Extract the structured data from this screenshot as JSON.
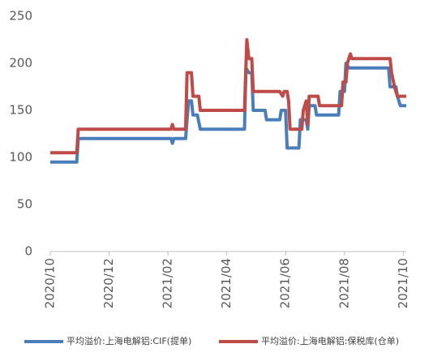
{
  "chart_data": {
    "type": "line",
    "xlim": [
      0,
      12.1
    ],
    "xticks": [
      {
        "value": 0,
        "label": "2020/10"
      },
      {
        "value": 2,
        "label": "2020/12"
      },
      {
        "value": 4,
        "label": "2021/02"
      },
      {
        "value": 6,
        "label": "2021/04"
      },
      {
        "value": 8,
        "label": "2021/06"
      },
      {
        "value": 10,
        "label": "2021/08"
      },
      {
        "value": 12,
        "label": "2021/10"
      }
    ],
    "ylim": [
      0,
      250
    ],
    "yticks": [
      0,
      50,
      100,
      150,
      200,
      250
    ],
    "grid": false,
    "legend": "bottom",
    "series": [
      {
        "name": "平均溢价:上海电解铝:CIF(提单)",
        "color": "#4a7ebb",
        "x": [
          0,
          0.9,
          0.95,
          4.1,
          4.15,
          4.2,
          4.6,
          4.7,
          4.8,
          4.85,
          5.0,
          5.1,
          6.6,
          6.65,
          6.75,
          6.85,
          6.9,
          7.3,
          7.35,
          7.8,
          7.85,
          8.0,
          8.05,
          8.45,
          8.5,
          8.7,
          8.75,
          8.8,
          9.0,
          9.05,
          9.8,
          9.85,
          10.0,
          10.05,
          10.15,
          11.5,
          11.55,
          11.75,
          11.8,
          11.9,
          12.1
        ],
        "values": [
          95,
          95,
          120,
          120,
          115,
          120,
          120,
          160,
          160,
          145,
          145,
          130,
          130,
          195,
          190,
          190,
          150,
          150,
          140,
          140,
          150,
          150,
          110,
          110,
          140,
          140,
          130,
          155,
          155,
          145,
          145,
          170,
          170,
          200,
          195,
          195,
          175,
          175,
          165,
          155,
          155
        ]
      },
      {
        "name": "平均溢价:上海电解铝:保税库(仓单)",
        "color": "#be4b48",
        "x": [
          0,
          0.9,
          0.95,
          4.1,
          4.15,
          4.2,
          4.6,
          4.65,
          4.8,
          4.85,
          5.05,
          5.1,
          6.6,
          6.68,
          6.75,
          6.85,
          6.9,
          7.8,
          7.9,
          7.95,
          8.05,
          8.1,
          8.15,
          8.55,
          8.6,
          8.7,
          8.75,
          8.8,
          9.1,
          9.15,
          9.9,
          9.95,
          10.05,
          10.1,
          10.2,
          10.25,
          11.55,
          11.6,
          11.7,
          11.8,
          12.1
        ],
        "values": [
          105,
          105,
          130,
          130,
          135,
          130,
          130,
          190,
          190,
          165,
          165,
          150,
          150,
          225,
          205,
          205,
          170,
          170,
          165,
          170,
          170,
          160,
          130,
          130,
          150,
          160,
          135,
          165,
          165,
          155,
          155,
          180,
          180,
          200,
          210,
          205,
          205,
          190,
          175,
          165,
          165
        ]
      }
    ]
  }
}
